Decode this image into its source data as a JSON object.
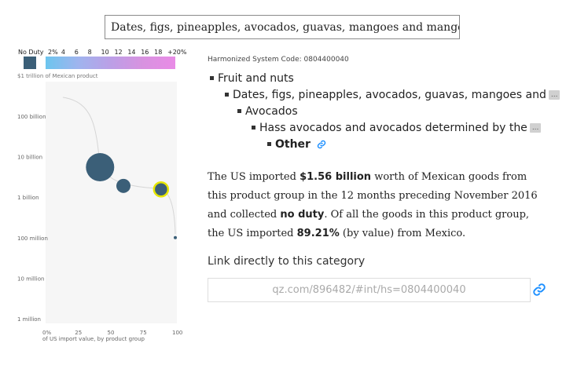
{
  "search": {
    "value": "Dates, figs, pineapples, avocados, guavas, mangoes and mangosteens, fresh or dried"
  },
  "legend": {
    "no_duty_label": "No Duty",
    "scale_labels": [
      "2%",
      "4",
      "6",
      "8",
      "10",
      "12",
      "14",
      "16",
      "18",
      "+20%"
    ],
    "colors": {
      "no_duty": "#3b5f78",
      "gradient_start": "#6cc5ee",
      "gradient_end": "#e98be6",
      "highlight": "#e6e600"
    }
  },
  "chart_data": {
    "type": "scatter",
    "title": "",
    "subtitle": "$1 trillion of Mexican product",
    "xlabel": "of US import value, by product group",
    "ylabel": "",
    "x_ticks": [
      "0%",
      "25",
      "50",
      "75",
      "100"
    ],
    "y_ticks": [
      "100 billion",
      "10 billion",
      "1 billion",
      "100 million",
      "10 million",
      "1 million"
    ],
    "xlim": [
      0,
      100
    ],
    "ylim_log10": [
      6,
      12
    ],
    "y_scale": "log",
    "points": [
      {
        "name": "Fruit and nuts",
        "x": 42,
        "y": 5500000000,
        "r": 18
      },
      {
        "name": "Dates, figs, pineapples, avocados, guavas, mangoes and mangosteens",
        "x": 60,
        "y": 1900000000,
        "r": 9
      },
      {
        "name": "Avocados",
        "x": 89,
        "y": 1560000000,
        "r": 9,
        "highlight": true
      },
      {
        "name": "Other",
        "x": 100,
        "y": 100000000,
        "r": 2
      }
    ]
  },
  "detail": {
    "hs_code_text": "Harmonized System Code: 0804400040",
    "breadcrumbs": [
      {
        "label": "Fruit and nuts",
        "truncated": false
      },
      {
        "label": "Dates, figs, pineapples, avocados, guavas, mangoes and",
        "truncated": true
      },
      {
        "label": "Avocados",
        "truncated": false
      },
      {
        "label": "Hass avocados and avocados determined by the",
        "truncated": true
      },
      {
        "label": "Other",
        "truncated": false
      }
    ],
    "ellipsis": "...",
    "summary": {
      "part1": "The US imported ",
      "amount": "$1.56 billion",
      "part2": " worth of Mexican goods from this product group in the 12 months preceding November 2016 and collected ",
      "duty": "no duty",
      "part3": ". Of all the goods in this product group, the US imported ",
      "share": "89.21%",
      "part4": " (by value) from Mexico."
    },
    "link_heading": "Link directly to this category",
    "link_url": "qz.com/896482/#int/hs=0804400040"
  }
}
